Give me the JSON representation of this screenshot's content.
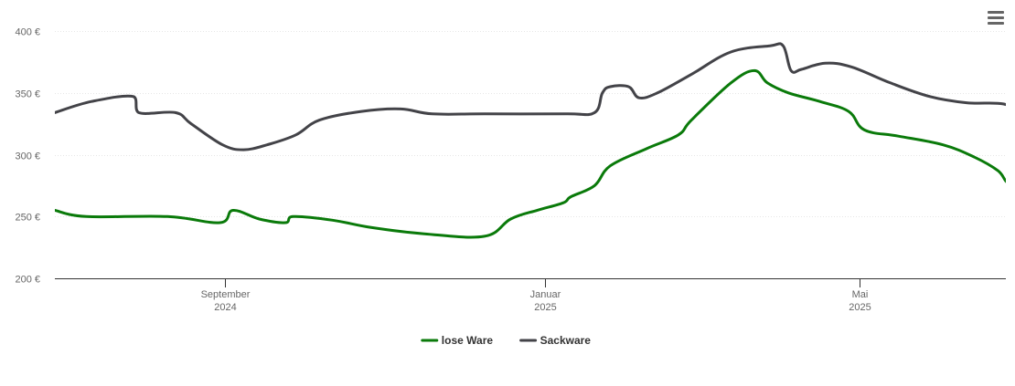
{
  "menu": {
    "icon": "hamburger-menu-icon"
  },
  "chart_data": {
    "type": "line",
    "y_ticks": [
      {
        "value": 200,
        "label": "200 €"
      },
      {
        "value": 250,
        "label": "250 €"
      },
      {
        "value": 300,
        "label": "300 €"
      },
      {
        "value": 350,
        "label": "350 €"
      },
      {
        "value": 400,
        "label": "400 €"
      }
    ],
    "ylim": [
      200,
      400
    ],
    "xlim": [
      "2024-06-28",
      "2025-06-26"
    ],
    "x_ticks": [
      {
        "date": "2024-09-01",
        "line1": "September",
        "line2": "2024"
      },
      {
        "date": "2025-01-01",
        "line1": "Januar",
        "line2": "2025"
      },
      {
        "date": "2025-05-01",
        "line1": "Mai",
        "line2": "2025"
      }
    ],
    "grid": true,
    "legend_position": "bottom-center",
    "series": [
      {
        "name": "lose Ware",
        "color": "#0a7a0a",
        "points": [
          [
            "2024-06-28",
            255
          ],
          [
            "2024-07-10",
            250
          ],
          [
            "2024-08-10",
            250
          ],
          [
            "2024-08-30",
            245
          ],
          [
            "2024-09-04",
            255
          ],
          [
            "2024-09-14",
            248
          ],
          [
            "2024-09-24",
            245
          ],
          [
            "2024-09-27",
            250
          ],
          [
            "2024-10-12",
            247
          ],
          [
            "2024-10-27",
            241
          ],
          [
            "2024-11-16",
            236
          ],
          [
            "2024-12-09",
            234
          ],
          [
            "2024-12-19",
            248
          ],
          [
            "2024-12-29",
            255
          ],
          [
            "2025-01-08",
            261
          ],
          [
            "2025-01-11",
            266
          ],
          [
            "2025-01-20",
            275
          ],
          [
            "2025-01-26",
            291
          ],
          [
            "2025-02-09",
            305
          ],
          [
            "2025-02-21",
            316
          ],
          [
            "2025-02-26",
            328
          ],
          [
            "2025-03-13",
            358
          ],
          [
            "2025-03-22",
            368
          ],
          [
            "2025-03-27",
            358
          ],
          [
            "2025-04-04",
            350
          ],
          [
            "2025-04-16",
            343
          ],
          [
            "2025-04-27",
            335
          ],
          [
            "2025-05-03",
            320
          ],
          [
            "2025-05-16",
            315
          ],
          [
            "2025-06-02",
            308
          ],
          [
            "2025-06-14",
            298
          ],
          [
            "2025-06-23",
            287
          ],
          [
            "2025-06-27",
            277
          ],
          [
            "2025-07-03",
            278
          ]
        ]
      },
      {
        "name": "Sackware",
        "color": "#434348",
        "points": [
          [
            "2024-06-28",
            334
          ],
          [
            "2024-07-12",
            343
          ],
          [
            "2024-07-28",
            347
          ],
          [
            "2024-07-30",
            334
          ],
          [
            "2024-08-13",
            334
          ],
          [
            "2024-08-19",
            325
          ],
          [
            "2024-08-31",
            308
          ],
          [
            "2024-09-08",
            304
          ],
          [
            "2024-09-17",
            308
          ],
          [
            "2024-09-28",
            316
          ],
          [
            "2024-10-07",
            328
          ],
          [
            "2024-10-23",
            335
          ],
          [
            "2024-11-07",
            337
          ],
          [
            "2024-11-19",
            333
          ],
          [
            "2024-12-09",
            333
          ],
          [
            "2025-01-09",
            333
          ],
          [
            "2025-01-20",
            334
          ],
          [
            "2025-01-23",
            350
          ],
          [
            "2025-01-26",
            355
          ],
          [
            "2025-02-02",
            355
          ],
          [
            "2025-02-06",
            346
          ],
          [
            "2025-02-13",
            350
          ],
          [
            "2025-02-26",
            365
          ],
          [
            "2025-03-13",
            383
          ],
          [
            "2025-03-28",
            388
          ],
          [
            "2025-04-02",
            388
          ],
          [
            "2025-04-05",
            368
          ],
          [
            "2025-04-09",
            369
          ],
          [
            "2025-04-18",
            374
          ],
          [
            "2025-04-28",
            371
          ],
          [
            "2025-05-13",
            358
          ],
          [
            "2025-05-28",
            347
          ],
          [
            "2025-06-11",
            342
          ],
          [
            "2025-06-25",
            341
          ],
          [
            "2025-07-03",
            333
          ]
        ]
      }
    ]
  }
}
